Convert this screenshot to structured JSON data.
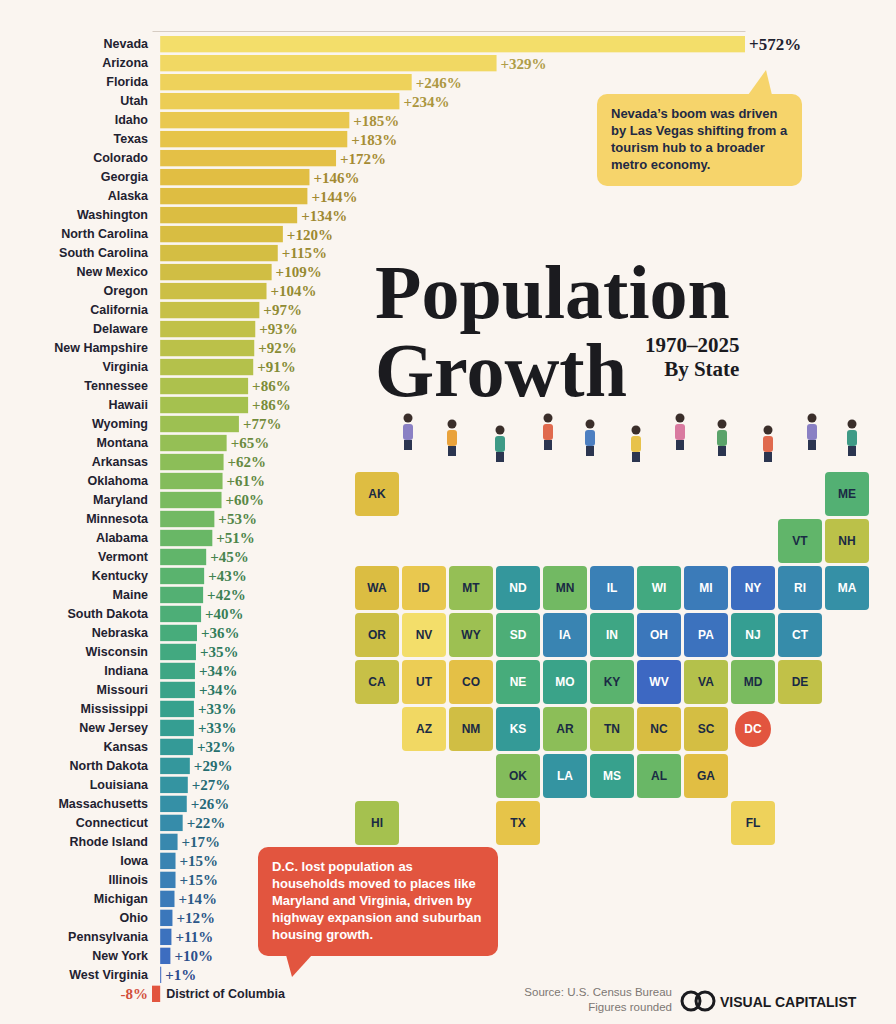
{
  "chart_data": {
    "type": "bar",
    "orientation": "horizontal",
    "title": "Population Growth",
    "subtitle": "1970–2025 By State",
    "categories": [
      "Nevada",
      "Arizona",
      "Florida",
      "Utah",
      "Idaho",
      "Texas",
      "Colorado",
      "Georgia",
      "Alaska",
      "Washington",
      "North Carolina",
      "South Carolina",
      "New Mexico",
      "Oregon",
      "California",
      "Delaware",
      "New Hampshire",
      "Virginia",
      "Tennessee",
      "Hawaii",
      "Wyoming",
      "Montana",
      "Arkansas",
      "Oklahoma",
      "Maryland",
      "Minnesota",
      "Alabama",
      "Vermont",
      "Kentucky",
      "Maine",
      "South Dakota",
      "Nebraska",
      "Wisconsin",
      "Indiana",
      "Missouri",
      "Mississippi",
      "New Jersey",
      "Kansas",
      "North Dakota",
      "Louisiana",
      "Massachusetts",
      "Connecticut",
      "Rhode Island",
      "Iowa",
      "Illinois",
      "Michigan",
      "Ohio",
      "Pennsylvania",
      "New York",
      "West Virginia",
      "District of Columbia"
    ],
    "values": [
      572,
      329,
      246,
      234,
      185,
      183,
      172,
      146,
      144,
      134,
      120,
      115,
      109,
      104,
      97,
      93,
      92,
      91,
      86,
      86,
      77,
      65,
      62,
      61,
      60,
      53,
      51,
      45,
      43,
      42,
      40,
      36,
      35,
      34,
      34,
      33,
      33,
      32,
      29,
      27,
      26,
      22,
      17,
      15,
      15,
      14,
      12,
      11,
      10,
      1,
      -8
    ],
    "value_labels": [
      "+572%",
      "+329%",
      "+246%",
      "+234%",
      "+185%",
      "+183%",
      "+172%",
      "+146%",
      "+144%",
      "+134%",
      "+120%",
      "+115%",
      "+109%",
      "+104%",
      "+97%",
      "+93%",
      "+92%",
      "+91%",
      "+86%",
      "+86%",
      "+77%",
      "+65%",
      "+62%",
      "+61%",
      "+60%",
      "+53%",
      "+51%",
      "+45%",
      "+43%",
      "+42%",
      "+40%",
      "+36%",
      "+35%",
      "+34%",
      "+34%",
      "+33%",
      "+33%",
      "+32%",
      "+29%",
      "+27%",
      "+26%",
      "+22%",
      "+17%",
      "+15%",
      "+15%",
      "+14%",
      "+12%",
      "+11%",
      "+10%",
      "+1%",
      "-8%"
    ],
    "xlim": [
      -8,
      572
    ],
    "xticks": [],
    "tick_labels": "y",
    "data_labels": true,
    "annotations": [
      "Nevada’s boom was driven by Las Vegas shifting from a tourism hub to a broader metro economy.",
      "D.C. lost population as households moved to places like Maryland and Virginia, driven by highway expansion and suburban housing growth."
    ],
    "source": "Source: U.S. Census Bureau",
    "note": "Figures rounded",
    "brand": "VISUAL CAPITALIST"
  },
  "map": {
    "labels": [
      "NV",
      "AZ",
      "FL",
      "UT",
      "ID",
      "TX",
      "CO",
      "GA",
      "AK",
      "WA",
      "NC",
      "SC",
      "NM",
      "OR",
      "CA",
      "DE",
      "NH",
      "VA",
      "TN",
      "HI",
      "WY",
      "MT",
      "AR",
      "OK",
      "MD",
      "MN",
      "AL",
      "VT",
      "KY",
      "ME",
      "SD",
      "NE",
      "WI",
      "IN",
      "MO",
      "MS",
      "NJ",
      "KS",
      "ND",
      "LA",
      "MA",
      "CT",
      "RI",
      "IA",
      "IL",
      "MI",
      "OH",
      "PA",
      "NY",
      "WV",
      "DC"
    ]
  }
}
